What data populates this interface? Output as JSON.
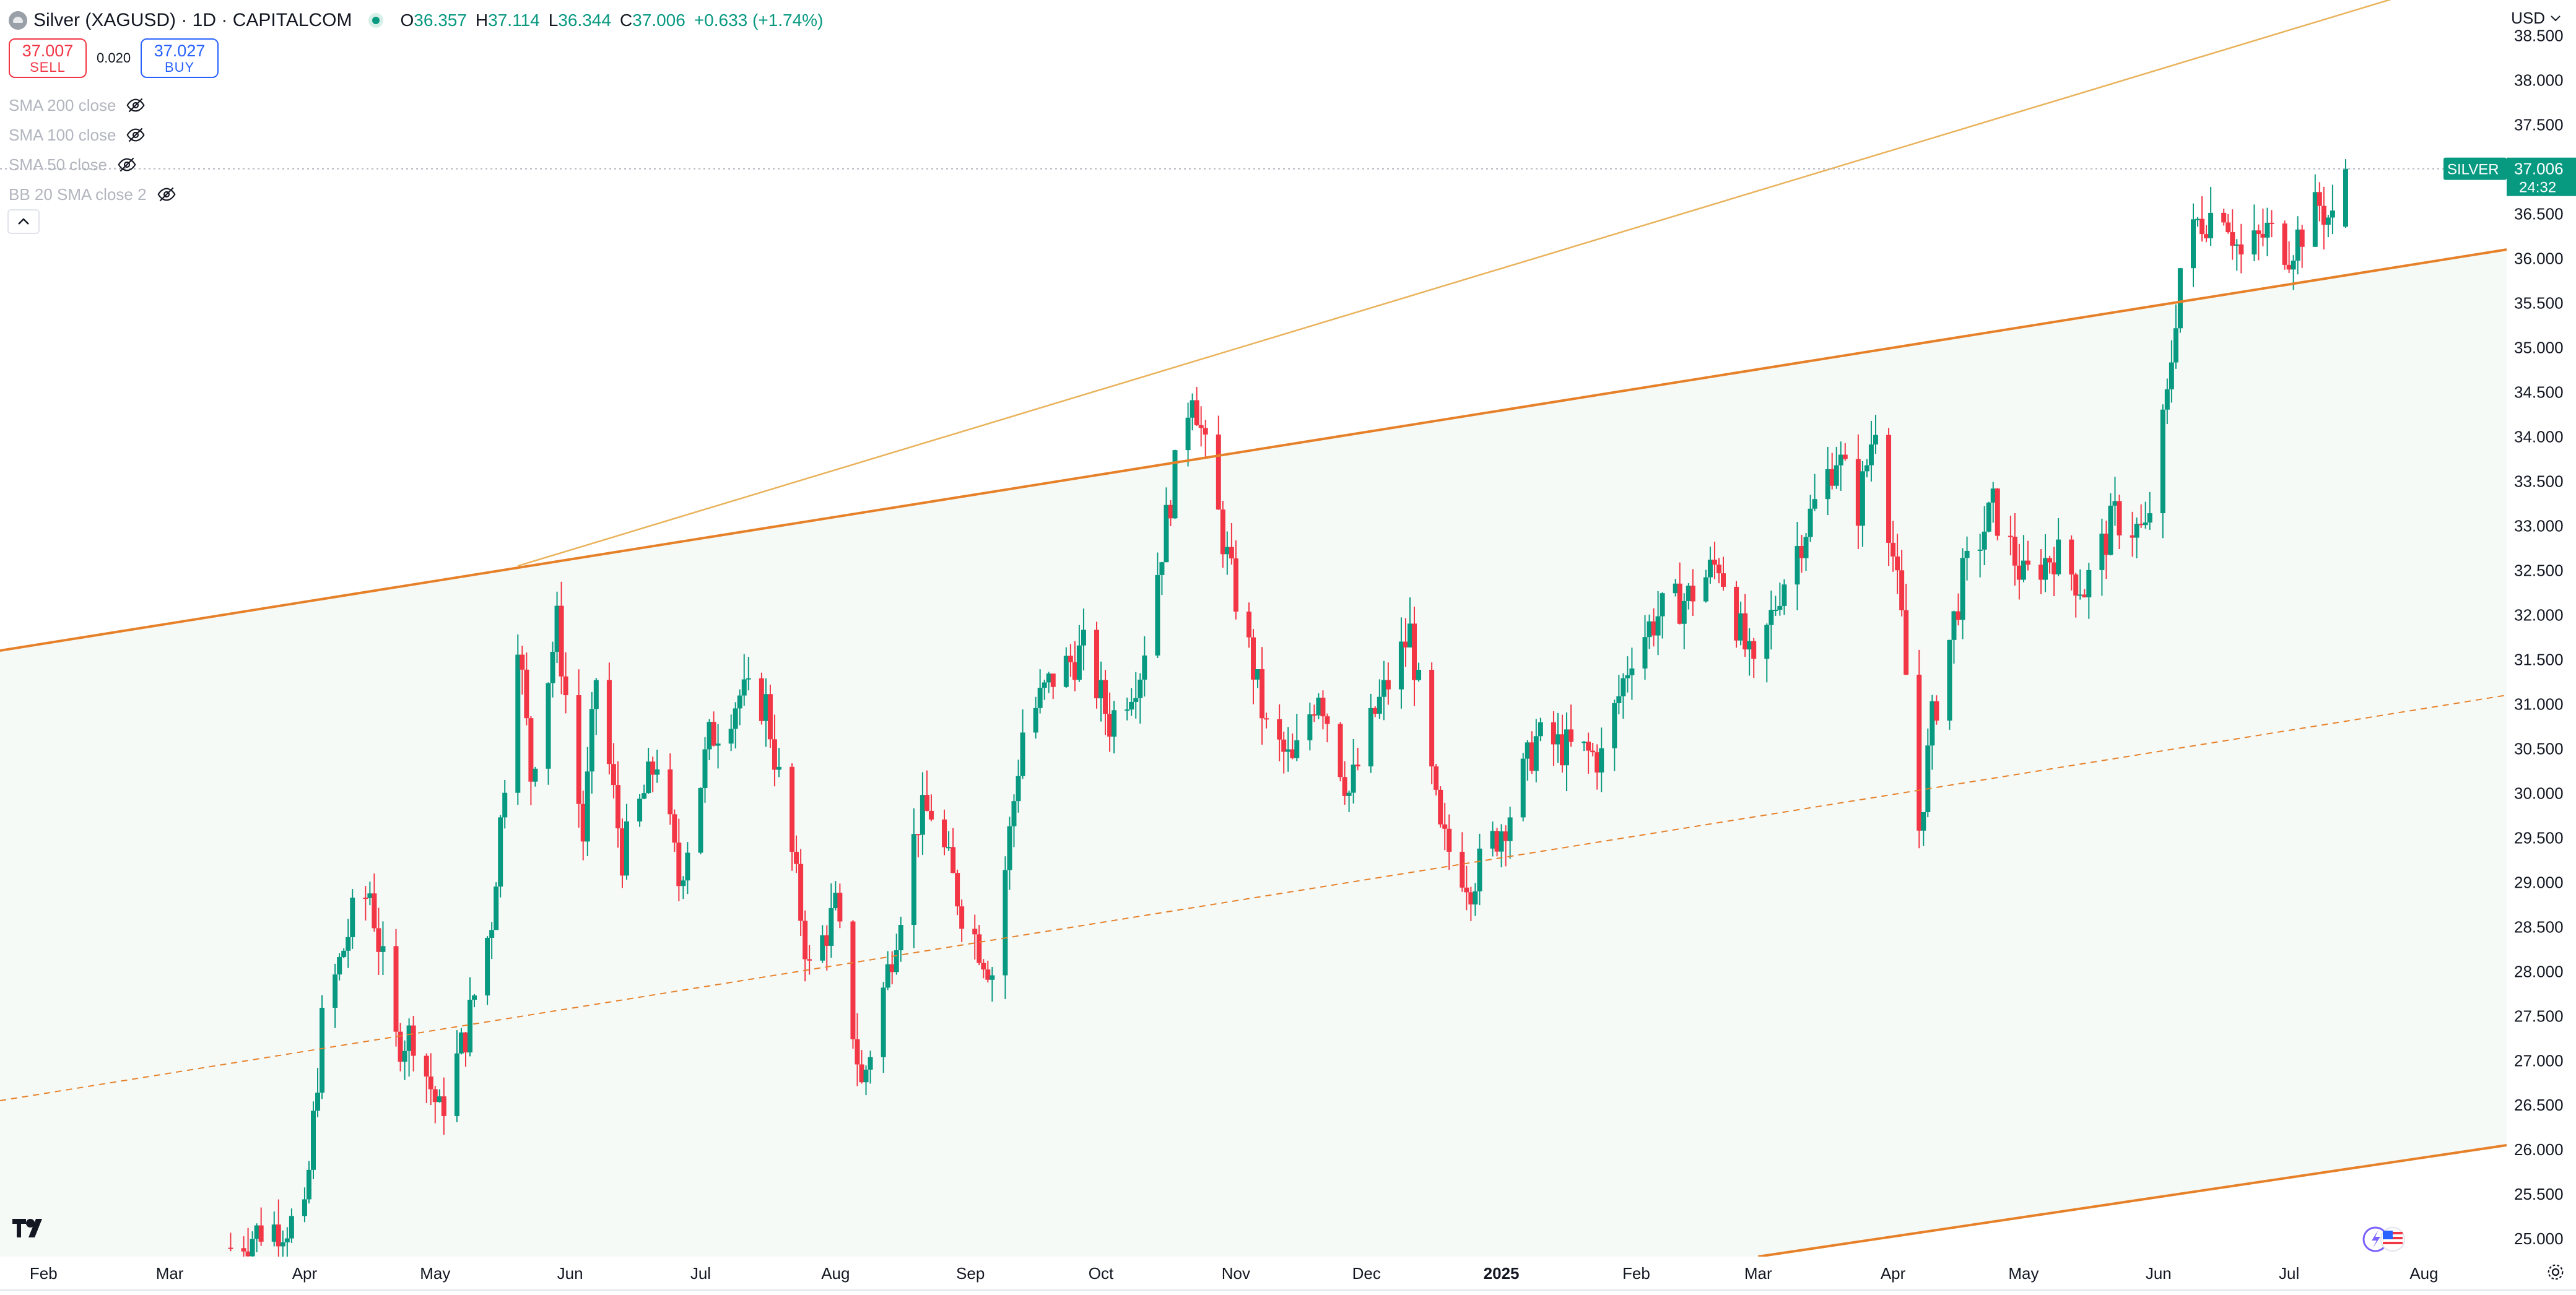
{
  "header": {
    "title": "Silver (XAGUSD) · 1D · CAPITALCOM",
    "open_label": "O",
    "open": "36.357",
    "high_label": "H",
    "high": "37.114",
    "low_label": "L",
    "low": "36.344",
    "close_label": "C",
    "close": "37.006",
    "change": "+0.633 (+1.74%)"
  },
  "trade": {
    "sell_price": "37.007",
    "sell_label": "SELL",
    "spread": "0.020",
    "buy_price": "37.027",
    "buy_label": "BUY"
  },
  "indicators": [
    {
      "label": "SMA 200 close"
    },
    {
      "label": "SMA 100 close"
    },
    {
      "label": "SMA 50 close"
    },
    {
      "label": "BB 20 SMA close 2"
    }
  ],
  "currency": "USD",
  "price_badge": {
    "symbol": "SILVER",
    "price": "37.006",
    "countdown": "24:32"
  },
  "colors": {
    "up": "#089981",
    "down": "#f23645",
    "channel": "#e6812a",
    "fan": "#e9b25a",
    "fill": "#f6faf7",
    "grid_dot": "#b2b5be"
  },
  "chart_data": {
    "type": "candlestick",
    "symbol": "XAGUSD",
    "interval": "1D",
    "ylim": [
      24.8,
      38.9
    ],
    "y_ticks": [
      25.0,
      25.5,
      26.0,
      26.5,
      27.0,
      27.5,
      28.0,
      28.5,
      29.0,
      29.5,
      30.0,
      30.5,
      31.0,
      31.5,
      32.0,
      32.5,
      33.0,
      33.5,
      34.0,
      34.5,
      35.0,
      35.5,
      36.0,
      36.5,
      37.0,
      37.5,
      38.0,
      38.5
    ],
    "y_tick_labels": [
      "25.000",
      "25.500",
      "26.000",
      "26.500",
      "27.000",
      "27.500",
      "28.000",
      "28.500",
      "29.000",
      "29.500",
      "30.000",
      "30.500",
      "31.000",
      "31.500",
      "32.000",
      "32.500",
      "33.000",
      "33.500",
      "34.000",
      "34.500",
      "35.000",
      "35.500",
      "36.000",
      "36.500",
      "37.000",
      "37.500",
      "38.000",
      "38.500"
    ],
    "x_range": [
      "2024-01-22",
      "2025-08-20"
    ],
    "x_ticks": [
      {
        "label": "Feb",
        "date": "2024-02-01"
      },
      {
        "label": "Mar",
        "date": "2024-03-01"
      },
      {
        "label": "Apr",
        "date": "2024-04-01"
      },
      {
        "label": "May",
        "date": "2024-05-01"
      },
      {
        "label": "Jun",
        "date": "2024-06-01"
      },
      {
        "label": "Jul",
        "date": "2024-07-01"
      },
      {
        "label": "Aug",
        "date": "2024-08-01"
      },
      {
        "label": "Sep",
        "date": "2024-09-01"
      },
      {
        "label": "Oct",
        "date": "2024-10-01"
      },
      {
        "label": "Nov",
        "date": "2024-11-01"
      },
      {
        "label": "Dec",
        "date": "2024-12-01"
      },
      {
        "label": "2025",
        "date": "2025-01-01",
        "bold": true
      },
      {
        "label": "Feb",
        "date": "2025-02-01"
      },
      {
        "label": "Mar",
        "date": "2025-03-01"
      },
      {
        "label": "Apr",
        "date": "2025-04-01"
      },
      {
        "label": "May",
        "date": "2025-05-01"
      },
      {
        "label": "Jun",
        "date": "2025-06-01"
      },
      {
        "label": "Jul",
        "date": "2025-07-01"
      },
      {
        "label": "Aug",
        "date": "2025-08-01"
      }
    ],
    "anchors": [
      [
        "2024-03-15",
        24.9
      ],
      [
        "2024-03-22",
        25.1
      ],
      [
        "2024-04-01",
        25.2
      ],
      [
        "2024-04-05",
        27.4
      ],
      [
        "2024-04-12",
        28.6
      ],
      [
        "2024-04-16",
        28.9
      ],
      [
        "2024-04-22",
        27.2
      ],
      [
        "2024-04-26",
        27.3
      ],
      [
        "2024-05-02",
        26.4
      ],
      [
        "2024-05-08",
        27.3
      ],
      [
        "2024-05-14",
        28.6
      ],
      [
        "2024-05-20",
        31.8
      ],
      [
        "2024-05-23",
        30.2
      ],
      [
        "2024-05-29",
        31.9
      ],
      [
        "2024-06-04",
        29.5
      ],
      [
        "2024-06-07",
        31.3
      ],
      [
        "2024-06-13",
        29.3
      ],
      [
        "2024-06-21",
        30.4
      ],
      [
        "2024-06-26",
        29.0
      ],
      [
        "2024-07-03",
        30.6
      ],
      [
        "2024-07-10",
        31.1
      ],
      [
        "2024-07-16",
        31.0
      ],
      [
        "2024-07-22",
        29.3
      ],
      [
        "2024-07-26",
        28.0
      ],
      [
        "2024-08-01",
        28.7
      ],
      [
        "2024-08-07",
        26.7
      ],
      [
        "2024-08-13",
        28.0
      ],
      [
        "2024-08-20",
        29.7
      ],
      [
        "2024-08-23",
        29.8
      ],
      [
        "2024-08-30",
        28.7
      ],
      [
        "2024-09-06",
        28.0
      ],
      [
        "2024-09-13",
        30.7
      ],
      [
        "2024-09-20",
        31.3
      ],
      [
        "2024-09-27",
        31.6
      ],
      [
        "2024-10-03",
        30.8
      ],
      [
        "2024-10-10",
        31.4
      ],
      [
        "2024-10-18",
        33.6
      ],
      [
        "2024-10-22",
        34.6
      ],
      [
        "2024-10-25",
        33.8
      ],
      [
        "2024-10-31",
        32.4
      ],
      [
        "2024-11-05",
        31.4
      ],
      [
        "2024-11-08",
        30.7
      ],
      [
        "2024-11-14",
        30.3
      ],
      [
        "2024-11-20",
        31.2
      ],
      [
        "2024-11-27",
        30.0
      ],
      [
        "2024-12-03",
        30.9
      ],
      [
        "2024-12-11",
        31.8
      ],
      [
        "2024-12-18",
        29.5
      ],
      [
        "2024-12-25",
        29.0
      ],
      [
        "2025-01-03",
        29.8
      ],
      [
        "2025-01-09",
        30.6
      ],
      [
        "2025-01-16",
        30.5
      ],
      [
        "2025-01-24",
        30.4
      ],
      [
        "2025-01-31",
        31.6
      ],
      [
        "2025-02-06",
        32.0
      ],
      [
        "2025-02-13",
        32.2
      ],
      [
        "2025-02-20",
        32.6
      ],
      [
        "2025-02-28",
        31.3
      ],
      [
        "2025-03-06",
        32.3
      ],
      [
        "2025-03-12",
        33.0
      ],
      [
        "2025-03-19",
        33.8
      ],
      [
        "2025-03-24",
        33.2
      ],
      [
        "2025-03-28",
        34.2
      ],
      [
        "2025-04-03",
        31.9
      ],
      [
        "2025-04-07",
        29.6
      ],
      [
        "2025-04-10",
        30.8
      ],
      [
        "2025-04-17",
        32.4
      ],
      [
        "2025-04-24",
        33.2
      ],
      [
        "2025-05-01",
        32.4
      ],
      [
        "2025-05-08",
        32.7
      ],
      [
        "2025-05-15",
        32.3
      ],
      [
        "2025-05-22",
        33.1
      ],
      [
        "2025-05-29",
        32.9
      ],
      [
        "2025-06-03",
        34.4
      ],
      [
        "2025-06-06",
        35.9
      ],
      [
        "2025-06-10",
        36.4
      ],
      [
        "2025-06-16",
        36.6
      ],
      [
        "2025-06-20",
        36.0
      ],
      [
        "2025-06-26",
        36.3
      ],
      [
        "2025-07-01",
        36.1
      ],
      [
        "2025-07-08",
        36.6
      ],
      [
        "2025-07-11",
        36.4
      ],
      [
        "2025-07-14",
        37.0
      ]
    ],
    "last": {
      "date": "2025-07-14",
      "open": 36.357,
      "high": 37.114,
      "low": 36.344,
      "close": 37.006
    },
    "drawings": [
      {
        "name": "channel-upper",
        "style": "solid",
        "from": [
          "2024-01-22",
          31.6
        ],
        "to": [
          "2025-08-20",
          36.1
        ]
      },
      {
        "name": "channel-lower",
        "style": "solid",
        "from": [
          "2025-03-01",
          24.8
        ],
        "to": [
          "2025-08-20",
          26.05
        ]
      },
      {
        "name": "channel-median",
        "style": "dashed",
        "from": [
          "2024-01-22",
          26.55
        ],
        "to": [
          "2025-08-20",
          31.1
        ]
      },
      {
        "name": "fan-line",
        "style": "solid-thin",
        "from": [
          "2024-05-20",
          32.55
        ],
        "to": [
          "2025-08-20",
          39.3
        ]
      }
    ]
  }
}
